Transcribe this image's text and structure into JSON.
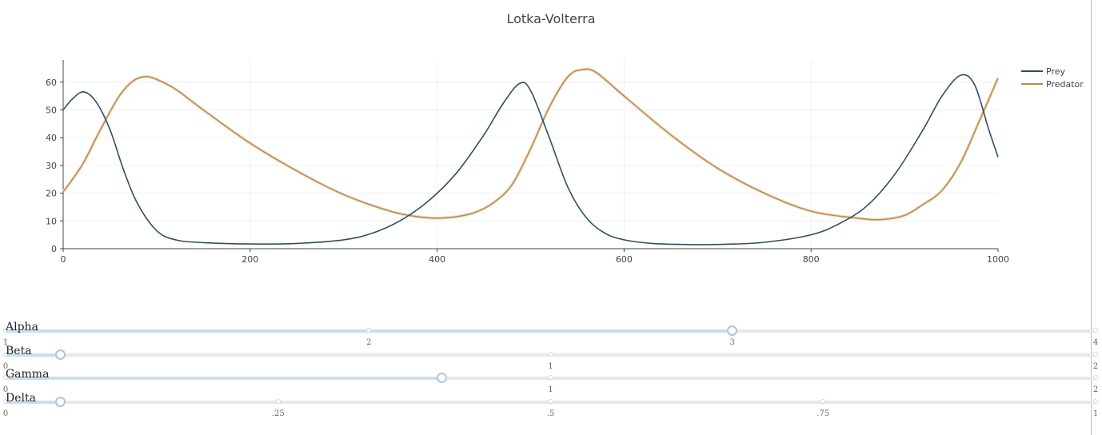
{
  "chart_data": {
    "type": "line",
    "title": "Lotka-Volterra",
    "xlabel": "",
    "ylabel": "",
    "xlim": [
      0,
      1000
    ],
    "ylim": [
      0,
      68
    ],
    "x_ticks": [
      0,
      200,
      400,
      600,
      800,
      1000
    ],
    "y_ticks": [
      0,
      10,
      20,
      30,
      40,
      50,
      60
    ],
    "grid": true,
    "legend_position": "top-right",
    "series": [
      {
        "name": "Prey",
        "color": "#2f4f5f",
        "x": [
          0,
          10,
          22,
          35,
          50,
          65,
          80,
          100,
          120,
          150,
          200,
          250,
          300,
          330,
          360,
          390,
          420,
          450,
          470,
          488,
          500,
          520,
          540,
          560,
          580,
          600,
          630,
          670,
          710,
          750,
          800,
          830,
          860,
          890,
          920,
          940,
          960,
          975,
          990,
          1000
        ],
        "y": [
          50,
          54,
          56.5,
          53,
          43,
          28,
          16,
          6.5,
          3.2,
          2.2,
          1.7,
          1.9,
          3.2,
          5.5,
          10,
          17,
          27,
          41,
          52,
          59.5,
          57,
          40,
          22,
          11,
          5.5,
          3.2,
          1.9,
          1.5,
          1.6,
          2.3,
          5,
          9,
          15.5,
          27,
          43,
          55,
          62.5,
          59,
          43,
          33
        ]
      },
      {
        "name": "Predator",
        "color": "#b98a55",
        "x": [
          0,
          20,
          40,
          60,
          75,
          88,
          100,
          120,
          150,
          200,
          250,
          300,
          350,
          380,
          400,
          420,
          440,
          460,
          480,
          500,
          520,
          540,
          555,
          570,
          600,
          650,
          700,
          750,
          800,
          850,
          875,
          900,
          920,
          940,
          960,
          980,
          1000
        ],
        "y": [
          20.5,
          30,
          43,
          55,
          60.5,
          62,
          61,
          57.5,
          50,
          38,
          28,
          19.5,
          13.5,
          11.5,
          11,
          11.5,
          13,
          16.5,
          23,
          36,
          51,
          62,
          64.5,
          63.5,
          55,
          41,
          29,
          20,
          13.5,
          11,
          10.5,
          12,
          16,
          21,
          31,
          46,
          61.5
        ]
      }
    ]
  },
  "sliders": [
    {
      "name": "alpha",
      "label": "Alpha",
      "min": 1,
      "max": 4,
      "value": 3,
      "ticks": [
        1,
        2,
        3,
        4
      ],
      "tick_labels": [
        "1",
        "2",
        "3",
        "4"
      ]
    },
    {
      "name": "beta",
      "label": "Beta",
      "min": 0,
      "max": 2,
      "value": 0.1,
      "ticks": [
        0,
        1,
        2
      ],
      "tick_labels": [
        "0",
        "1",
        "2"
      ]
    },
    {
      "name": "gamma",
      "label": "Gamma",
      "min": 0,
      "max": 2,
      "value": 0.8,
      "ticks": [
        0,
        1,
        2
      ],
      "tick_labels": [
        "0",
        "1",
        "2"
      ]
    },
    {
      "name": "delta",
      "label": "Delta",
      "min": 0,
      "max": 1,
      "value": 0.05,
      "ticks": [
        0,
        0.25,
        0.5,
        0.75,
        1
      ],
      "tick_labels": [
        "0",
        ".25",
        ".5",
        ".75",
        "1"
      ]
    }
  ]
}
